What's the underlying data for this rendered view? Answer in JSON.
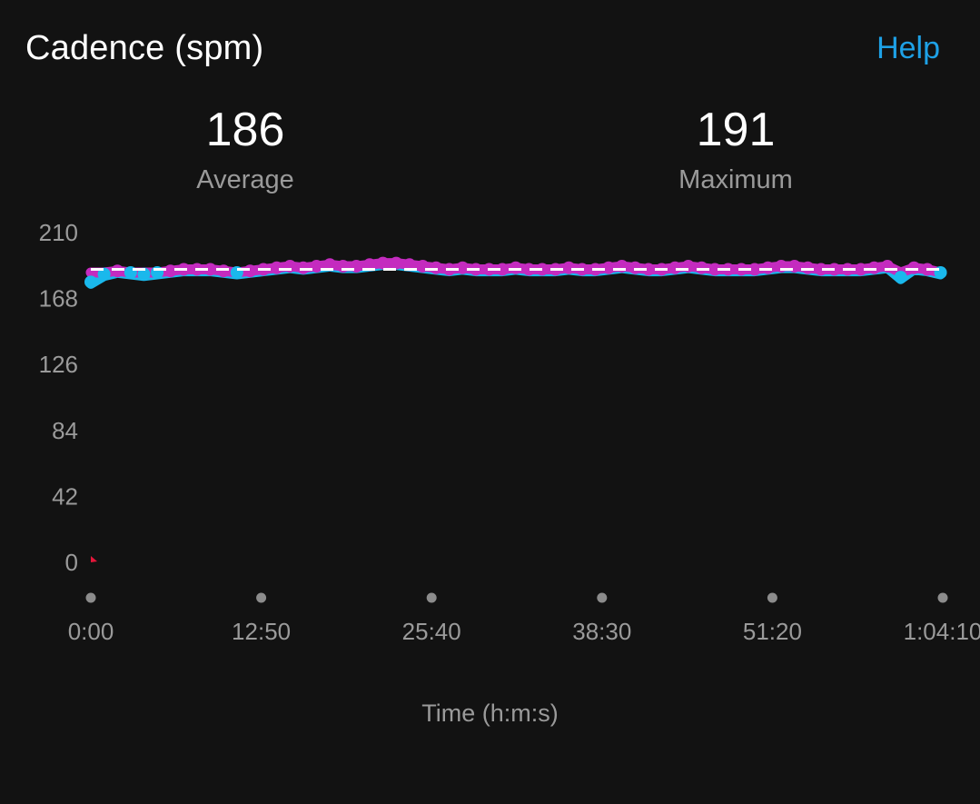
{
  "header": {
    "title": "Cadence (spm)",
    "help_label": "Help"
  },
  "stats": {
    "average": {
      "value": "186",
      "label": "Average"
    },
    "maximum": {
      "value": "191",
      "label": "Maximum"
    }
  },
  "colors": {
    "background": "#121212",
    "accent": "#1ea1e6",
    "series_low": "#1ab8ec",
    "series_high": "#c42bbf",
    "average_line": "#ffffff",
    "zero_marker": "#e4163a",
    "muted_text": "#9a9a9a"
  },
  "chart_data": {
    "type": "scatter",
    "title": "",
    "xlabel": "Time (h:m:s)",
    "ylabel": "",
    "ylim": [
      0,
      210
    ],
    "yticks": [
      210,
      168,
      126,
      84,
      42,
      0
    ],
    "ytick_labels": [
      "210",
      "168",
      "126",
      "84",
      "42",
      "0"
    ],
    "xticks": [
      "0:00",
      "12:50",
      "25:40",
      "38:30",
      "51:20",
      "1:04:10"
    ],
    "xtick_seconds": [
      0,
      770,
      1540,
      2310,
      3080,
      3850
    ],
    "xlim_seconds": [
      0,
      3850
    ],
    "average_line": 186,
    "grid": false,
    "legend": "none",
    "series": [
      {
        "x_seconds": [
          0,
          60,
          120,
          180,
          240,
          300,
          360,
          420,
          480,
          540,
          600,
          660,
          720,
          780,
          840,
          900,
          960,
          1020,
          1080,
          1140,
          1200,
          1260,
          1320,
          1380,
          1440,
          1500,
          1560,
          1620,
          1680,
          1740,
          1800,
          1860,
          1920,
          1980,
          2040,
          2100,
          2160,
          2220,
          2280,
          2340,
          2400,
          2460,
          2520,
          2580,
          2640,
          2700,
          2760,
          2820,
          2880,
          2940,
          3000,
          3060,
          3120,
          3180,
          3240,
          3300,
          3360,
          3420,
          3480,
          3540,
          3600,
          3660,
          3720,
          3780,
          3840
        ],
        "values": [
          178,
          183,
          185,
          184,
          183,
          184,
          185,
          186,
          186,
          186,
          185,
          184,
          185,
          186,
          187,
          188,
          187,
          188,
          189,
          188,
          188,
          189,
          190,
          190,
          189,
          188,
          187,
          186,
          187,
          186,
          186,
          186,
          187,
          186,
          186,
          186,
          187,
          186,
          186,
          187,
          188,
          187,
          186,
          186,
          187,
          188,
          187,
          186,
          186,
          186,
          186,
          187,
          188,
          188,
          187,
          186,
          186,
          186,
          186,
          187,
          188,
          181,
          187,
          186,
          184
        ]
      }
    ]
  }
}
